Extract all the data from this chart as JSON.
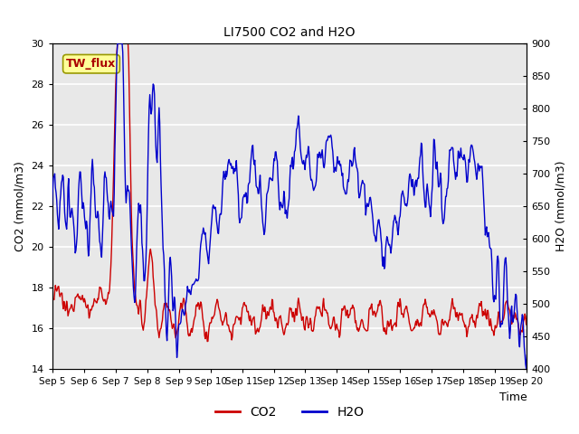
{
  "title": "LI7500 CO2 and H2O",
  "xlabel": "Time",
  "ylabel_left": "CO2 (mmol/m3)",
  "ylabel_right": "H2O (mmol/m3)",
  "xlim": [
    0,
    15
  ],
  "ylim_left": [
    14,
    30
  ],
  "ylim_right": [
    400,
    900
  ],
  "yticks_left": [
    14,
    16,
    18,
    20,
    22,
    24,
    26,
    28,
    30
  ],
  "yticks_right": [
    400,
    450,
    500,
    550,
    600,
    650,
    700,
    750,
    800,
    850,
    900
  ],
  "xtick_labels": [
    "Sep 5",
    "Sep 6",
    "Sep 7",
    "Sep 8",
    "Sep 9",
    "Sep 10",
    "Sep 11",
    "Sep 12",
    "Sep 13",
    "Sep 14",
    "Sep 15",
    "Sep 16",
    "Sep 17",
    "Sep 18",
    "Sep 19",
    "Sep 20"
  ],
  "co2_color": "#cc0000",
  "h2o_color": "#0000cc",
  "fig_bg_color": "#ffffff",
  "plot_bg_color": "#e8e8e8",
  "grid_color": "#f5f5f5",
  "annotation_text": "TW_flux",
  "annotation_bg": "#ffff99",
  "annotation_border": "#999900",
  "legend_co2": "CO2",
  "legend_h2o": "H2O",
  "title_fontsize": 10,
  "axis_fontsize": 9,
  "tick_fontsize": 8,
  "legend_fontsize": 10
}
